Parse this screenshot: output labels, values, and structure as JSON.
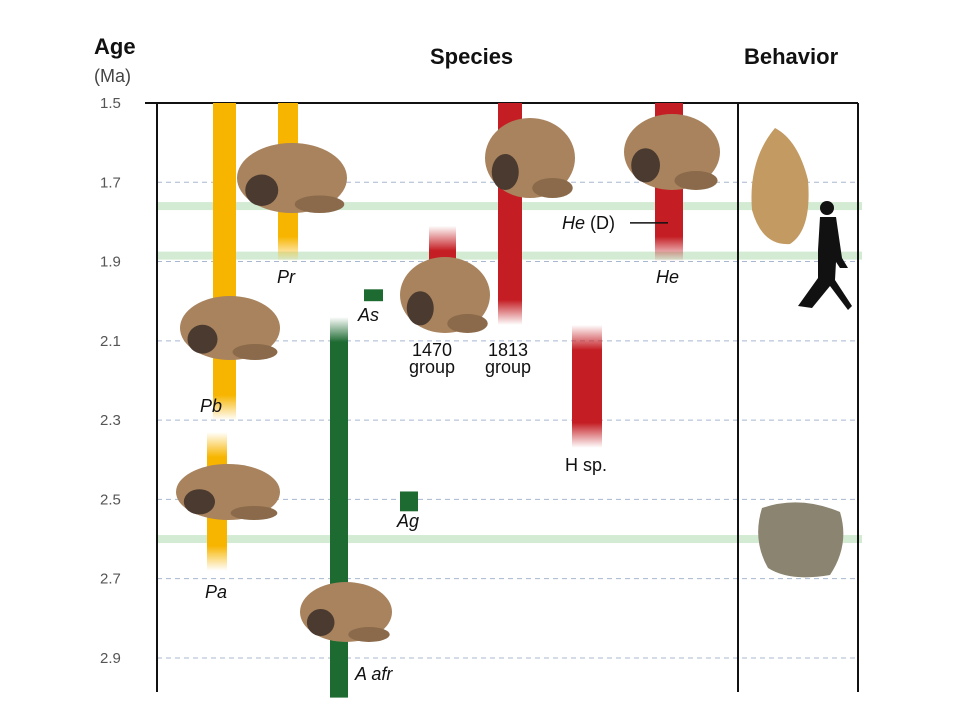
{
  "header": {
    "age": "Age",
    "unit": "(Ma)",
    "species": "Species",
    "behavior": "Behavior"
  },
  "colors": {
    "paranthropus": "#f7b500",
    "australopithecus": "#1e6b32",
    "homo": "#c41e24",
    "band": "#d3ebd3",
    "grid": "#a8b8d0"
  },
  "chart_data": {
    "type": "range-bar",
    "ylabel": "Age (Ma)",
    "ylim": [
      1.5,
      3.0
    ],
    "y_reversed": true,
    "yticks": [
      "1.5",
      "1.7",
      "1.9",
      "2.1",
      "2.3",
      "2.5",
      "2.7",
      "2.9"
    ],
    "grid": true,
    "bands": [
      1.76,
      1.885,
      2.6
    ],
    "series": [
      {
        "label": "Pb",
        "italic": true,
        "group": "paranthropus",
        "start": 1.5,
        "end": 2.3
      },
      {
        "label": "Pa",
        "italic": true,
        "group": "paranthropus",
        "start": 2.33,
        "end": 2.68
      },
      {
        "label": "Pr",
        "italic": true,
        "group": "paranthropus",
        "start": 1.5,
        "end": 1.9
      },
      {
        "label": "A afr",
        "italic": true,
        "group": "australopithecus",
        "start": 2.04,
        "end": 3.0
      },
      {
        "label": "As",
        "italic": true,
        "group": "australopithecus",
        "start": 1.97,
        "end": 2.0
      },
      {
        "label": "Ag",
        "italic": true,
        "group": "australopithecus",
        "start": 2.48,
        "end": 2.53
      },
      {
        "label": "1470",
        "label2": "group",
        "italic": false,
        "group": "homo",
        "start": 1.81,
        "end": 2.06
      },
      {
        "label": "1813",
        "label2": "group",
        "italic": false,
        "group": "homo",
        "start": 1.5,
        "end": 2.06
      },
      {
        "label": "H sp.",
        "italic": false,
        "group": "homo",
        "start": 2.06,
        "end": 2.37
      },
      {
        "label": "He",
        "italic": true,
        "group": "homo",
        "start": 1.5,
        "end": 1.9
      }
    ],
    "annotations": [
      {
        "text": "He (D)",
        "age": 1.8
      }
    ]
  }
}
